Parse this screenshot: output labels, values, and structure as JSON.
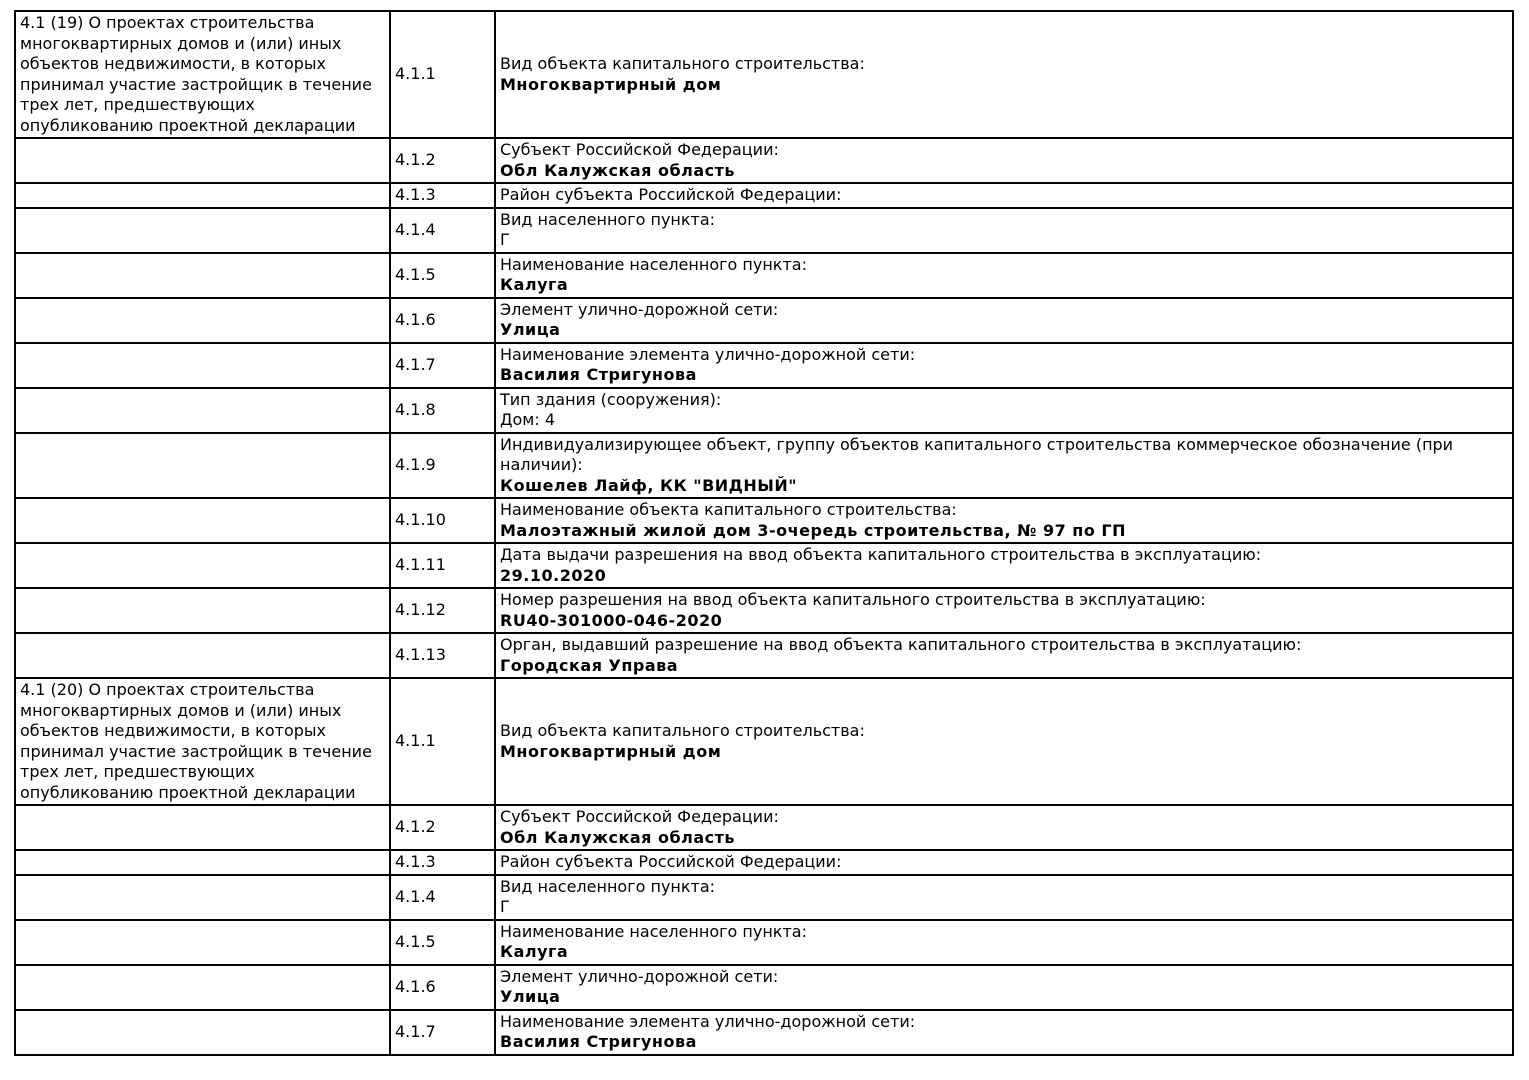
{
  "page": {
    "background_color": "#ffffff",
    "border_color": "#000000",
    "text_color": "#000000"
  },
  "sections": [
    {
      "description": "4.1 (19) О проектах строительства многоквартирных домов и (или) иных объектов недвижимости, в которых принимал участие застройщик в течение трех лет, предшествующих опубликованию проектной декларации",
      "rows": [
        {
          "num": "4.1.1",
          "label": "Вид объекта капитального строительства:",
          "value": "Многоквартирный дом",
          "bold": true
        },
        {
          "num": "4.1.2",
          "label": "Субъект Российской Федерации:",
          "value": "Обл Калужская область",
          "bold": true
        },
        {
          "num": "4.1.3",
          "label": "Район субъекта Российской Федерации:",
          "value": "",
          "bold": false
        },
        {
          "num": "4.1.4",
          "label": "Вид населенного пункта:",
          "value": "Г",
          "bold": false
        },
        {
          "num": "4.1.5",
          "label": "Наименование населенного пункта:",
          "value": "Калуга",
          "bold": true
        },
        {
          "num": "4.1.6",
          "label": "Элемент улично-дорожной сети:",
          "value": "Улица",
          "bold": true
        },
        {
          "num": "4.1.7",
          "label": "Наименование элемента улично-дорожной сети:",
          "value": "Василия Стригунова",
          "bold": true
        },
        {
          "num": "4.1.8",
          "label": "Тип здания (сооружения):",
          "value": "Дом: 4",
          "bold": false
        },
        {
          "num": "4.1.9",
          "label": "Индивидуализирующее объект, группу объектов капитального строительства коммерческое обозначение (при наличии):",
          "value": "Кошелев Лайф, КК \"ВИДНЫЙ\"",
          "bold": true
        },
        {
          "num": "4.1.10",
          "label": "Наименование объекта капитального строительства:",
          "value": "Малоэтажный жилой дом 3-очередь строительства, № 97 по ГП",
          "bold": true
        },
        {
          "num": "4.1.11",
          "label": "Дата выдачи разрешения на ввод объекта капитального строительства в эксплуатацию:",
          "value": "29.10.2020",
          "bold": true
        },
        {
          "num": "4.1.12",
          "label": "Номер разрешения на ввод объекта капитального строительства в эксплуатацию:",
          "value": "RU40-301000-046-2020",
          "bold": true
        },
        {
          "num": "4.1.13",
          "label": "Орган, выдавший разрешение на ввод объекта капитального строительства в эксплуатацию:",
          "value": "Городская Управа",
          "bold": true
        }
      ]
    },
    {
      "description": "4.1 (20) О проектах строительства многоквартирных домов и (или) иных объектов недвижимости, в которых принимал участие застройщик в течение трех лет, предшествующих опубликованию проектной декларации",
      "rows": [
        {
          "num": "4.1.1",
          "label": "Вид объекта капитального строительства:",
          "value": "Многоквартирный дом",
          "bold": true
        },
        {
          "num": "4.1.2",
          "label": "Субъект Российской Федерации:",
          "value": "Обл Калужская область",
          "bold": true
        },
        {
          "num": "4.1.3",
          "label": "Район субъекта Российской Федерации:",
          "value": "",
          "bold": false
        },
        {
          "num": "4.1.4",
          "label": "Вид населенного пункта:",
          "value": "Г",
          "bold": false
        },
        {
          "num": "4.1.5",
          "label": "Наименование населенного пункта:",
          "value": "Калуга",
          "bold": true
        },
        {
          "num": "4.1.6",
          "label": "Элемент улично-дорожной сети:",
          "value": "Улица",
          "bold": true
        },
        {
          "num": "4.1.7",
          "label": "Наименование элемента улично-дорожной сети:",
          "value": "Василия Стригунова",
          "bold": true
        }
      ]
    }
  ]
}
